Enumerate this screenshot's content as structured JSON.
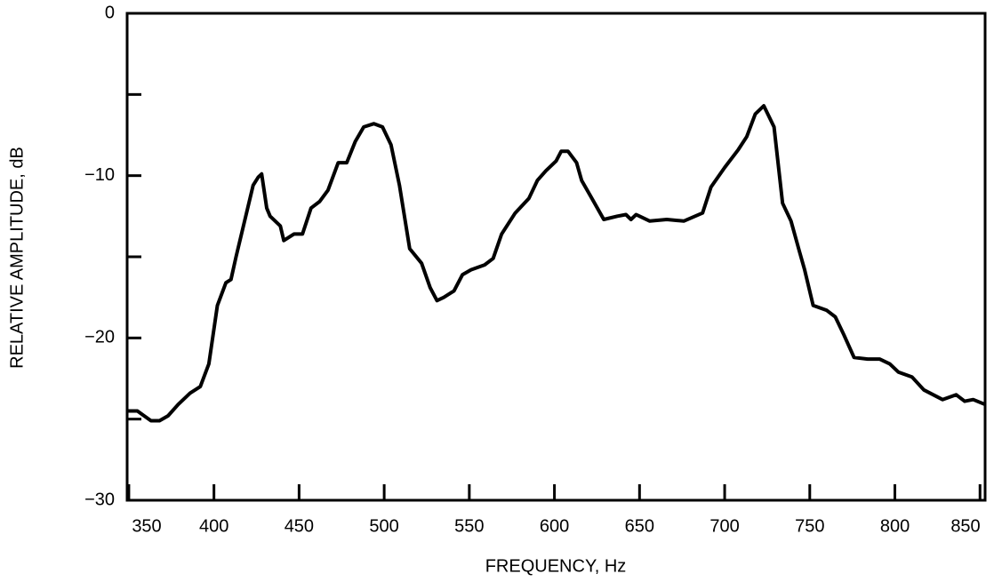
{
  "chart_data": {
    "type": "line",
    "xlabel": "FREQUENCY, Hz",
    "ylabel": "RELATIVE AMPLITUDE, dB",
    "xlim": [
      349,
      853
    ],
    "ylim": [
      -30,
      0
    ],
    "xticks": [
      350,
      400,
      450,
      500,
      550,
      600,
      650,
      700,
      750,
      800,
      850
    ],
    "yticks": [
      0,
      {
        "value": -10,
        "label": "−10"
      },
      {
        "value": -20,
        "label": "−20"
      },
      {
        "value": -30,
        "label": "−30"
      }
    ],
    "minor_yticks": [
      -5,
      -15,
      -25
    ],
    "color": "#000000",
    "x": [
      349,
      355,
      359,
      363,
      368,
      373,
      379,
      386,
      392,
      397,
      402,
      407,
      410,
      413,
      418,
      423,
      426,
      428,
      431,
      433,
      439,
      441,
      447,
      452,
      457,
      462,
      467,
      473,
      478,
      483,
      488,
      494,
      499,
      504,
      509,
      515,
      522,
      527,
      531,
      535,
      541,
      546,
      551,
      559,
      564,
      569,
      577,
      585,
      590,
      595,
      601,
      604,
      608,
      613,
      616,
      622,
      629,
      637,
      642,
      645,
      648,
      650,
      656,
      666,
      676,
      687,
      692,
      700,
      708,
      713,
      718,
      723,
      729,
      734,
      739,
      744,
      747,
      752,
      760,
      765,
      770,
      776,
      784,
      791,
      797,
      802,
      810,
      817,
      828,
      836,
      841,
      846,
      853
    ],
    "values": [
      -24.5,
      -24.5,
      -24.8,
      -25.1,
      -25.1,
      -24.8,
      -24.1,
      -23.4,
      -23.0,
      -21.6,
      -18.0,
      -16.6,
      -16.4,
      -15.0,
      -12.8,
      -10.6,
      -10.1,
      -9.9,
      -12.0,
      -12.5,
      -13.1,
      -14.0,
      -13.6,
      -13.6,
      -12.0,
      -11.6,
      -10.9,
      -9.2,
      -9.2,
      -7.9,
      -7.0,
      -6.8,
      -7.0,
      -8.1,
      -10.6,
      -14.5,
      -15.4,
      -16.9,
      -17.7,
      -17.5,
      -17.1,
      -16.1,
      -15.8,
      -15.5,
      -15.1,
      -13.6,
      -12.3,
      -11.4,
      -10.3,
      -9.7,
      -9.1,
      -8.5,
      -8.5,
      -9.2,
      -10.3,
      -11.4,
      -12.7,
      -12.5,
      -12.4,
      -12.7,
      -12.4,
      -12.5,
      -12.8,
      -12.7,
      -12.8,
      -12.3,
      -10.7,
      -9.5,
      -8.4,
      -7.6,
      -6.2,
      -5.7,
      -7.0,
      -11.7,
      -12.8,
      -14.7,
      -15.8,
      -18.0,
      -18.3,
      -18.7,
      -19.8,
      -21.2,
      -21.3,
      -21.3,
      -21.6,
      -22.1,
      -22.4,
      -23.2,
      -23.8,
      -23.5,
      -23.9,
      -23.8,
      -24.1
    ]
  }
}
